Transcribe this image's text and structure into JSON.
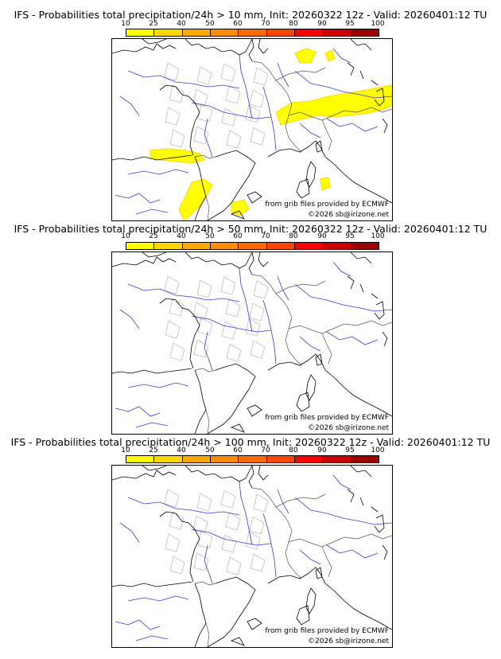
{
  "colorbar": {
    "ticks": [
      "10",
      "25",
      "40",
      "50",
      "60",
      "70",
      "80",
      "90",
      "95",
      "100"
    ],
    "colors": [
      "#ffff00",
      "#ffd700",
      "#ffaa00",
      "#ff8c00",
      "#ff6a00",
      "#ff4500",
      "#ff0000",
      "#cc0000",
      "#990000"
    ]
  },
  "panels": [
    {
      "title": "IFS - Probabilities total precipitation/24h > 10 mm, Init: 20260322 12z - Valid: 20260401:12 TU",
      "credit_source": "from grib files provided by ECMWF",
      "credit_copyright": "©2026 sb@irizone.net",
      "has_precip": true
    },
    {
      "title": "IFS - Probabilities total precipitation/24h > 50 mm, Init: 20260322 12z - Valid: 20260401:12 TU",
      "credit_source": "from grib files provided by ECMWF",
      "credit_copyright": "©2026 sb@irizone.net",
      "has_precip": false
    },
    {
      "title": "IFS - Probabilities total precipitation/24h > 100 mm, Init: 20260322 12z - Valid: 20260401:12 TU",
      "credit_source": "from grib files provided by ECMWF",
      "credit_copyright": "©2026 sb@irizone.net",
      "has_precip": false
    }
  ]
}
